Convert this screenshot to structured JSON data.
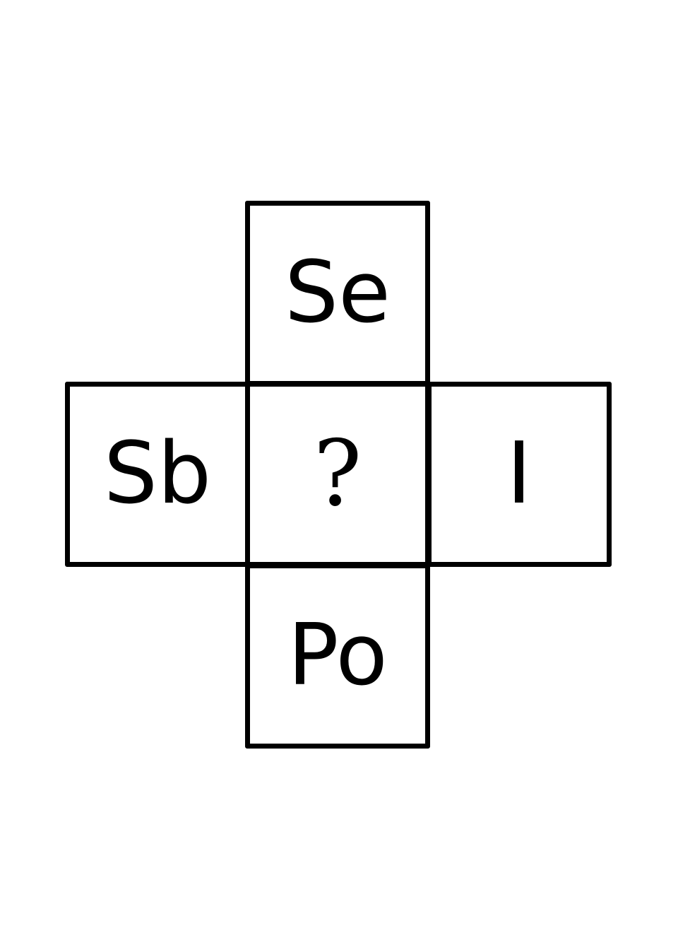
{
  "grid": {
    "top": "Se",
    "left": "Sb",
    "center": "?",
    "right": "I",
    "bottom": "Po"
  },
  "colors": {
    "border": "#000000",
    "text": "#000000",
    "background": "#ffffff"
  }
}
